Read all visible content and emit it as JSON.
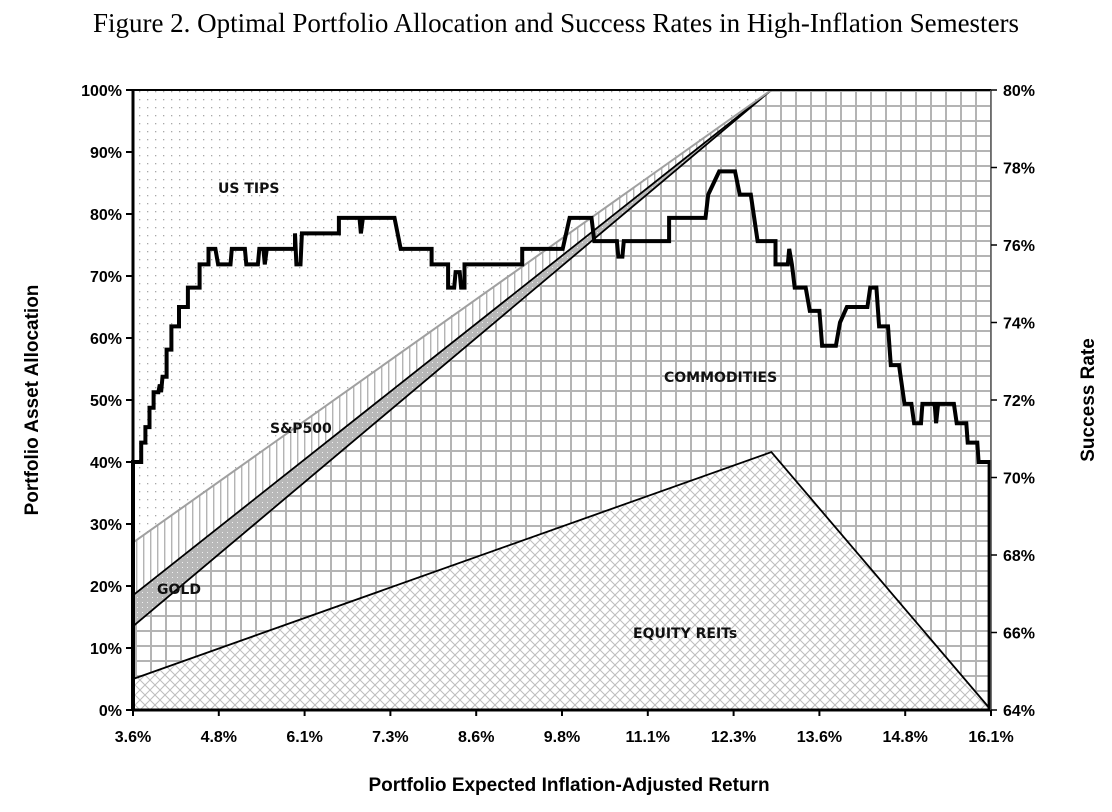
{
  "figure": {
    "title": "Figure 2. Optimal Portfolio Allocation and Success Rates in High-Inflation Semesters"
  },
  "chart_data": {
    "type": "area",
    "title": "Figure 2. Optimal Portfolio Allocation and Success Rates in High-Inflation Semesters",
    "xlabel": "Portfolio Expected Inflation-Adjusted Return",
    "ylabel": "Portfolio Asset Allocation",
    "y2label": "Success Rate",
    "xlim": [
      3.6,
      16.1
    ],
    "ylim": [
      0,
      100
    ],
    "y2lim": [
      64,
      80
    ],
    "x_ticks": [
      "3.6%",
      "4.8%",
      "6.1%",
      "7.3%",
      "8.6%",
      "9.8%",
      "11.1%",
      "12.3%",
      "13.6%",
      "14.8%",
      "16.1%"
    ],
    "y_ticks": [
      "0%",
      "10%",
      "20%",
      "30%",
      "40%",
      "50%",
      "60%",
      "70%",
      "80%",
      "90%",
      "100%"
    ],
    "y2_ticks": [
      "64%",
      "66%",
      "68%",
      "70%",
      "72%",
      "74%",
      "76%",
      "78%",
      "80%"
    ],
    "grid": false,
    "legend": "none (in-area labels)",
    "stacked_boundaries_note": "cumulative allocation (%) at top edge of each stacked asset band",
    "x": [
      3.6,
      12.9,
      16.1
    ],
    "series": [
      {
        "name": "EQUITY REITs",
        "label": "EQUITY REITs",
        "axis": "left",
        "cumulative_top": [
          5.0,
          41.6,
          0.0
        ]
      },
      {
        "name": "COMMODITIES",
        "label": "COMMODITIES",
        "axis": "left",
        "cumulative_top": [
          13.5,
          100.0,
          100.0
        ]
      },
      {
        "name": "GOLD",
        "label": "GOLD",
        "axis": "left",
        "cumulative_top": [
          18.5,
          100.0,
          100.0
        ]
      },
      {
        "name": "S&P500",
        "label": "S&P500",
        "axis": "left",
        "cumulative_top": [
          27.0,
          100.0,
          100.0
        ]
      },
      {
        "name": "US TIPS",
        "label": "US TIPS",
        "axis": "left",
        "cumulative_top": [
          100.0,
          100.0,
          100.0
        ]
      }
    ],
    "success_rate": {
      "name": "Success Rate",
      "axis": "right",
      "points": [
        [
          3.6,
          64.0
        ],
        [
          3.6,
          70.4
        ],
        [
          3.72,
          70.4
        ],
        [
          3.72,
          70.9
        ],
        [
          3.78,
          70.9
        ],
        [
          3.78,
          71.3
        ],
        [
          3.84,
          71.3
        ],
        [
          3.84,
          71.8
        ],
        [
          3.9,
          71.8
        ],
        [
          3.9,
          72.2
        ],
        [
          3.97,
          72.2
        ],
        [
          3.99,
          72.4
        ],
        [
          4.01,
          72.2
        ],
        [
          4.03,
          72.6
        ],
        [
          4.09,
          72.6
        ],
        [
          4.09,
          73.3
        ],
        [
          4.16,
          73.3
        ],
        [
          4.16,
          73.9
        ],
        [
          4.27,
          73.9
        ],
        [
          4.27,
          74.4
        ],
        [
          4.4,
          74.4
        ],
        [
          4.4,
          74.9
        ],
        [
          4.57,
          74.9
        ],
        [
          4.57,
          75.5
        ],
        [
          4.7,
          75.5
        ],
        [
          4.7,
          75.9
        ],
        [
          4.8,
          75.9
        ],
        [
          4.84,
          75.5
        ],
        [
          5.02,
          75.5
        ],
        [
          5.04,
          75.9
        ],
        [
          5.23,
          75.9
        ],
        [
          5.25,
          75.5
        ],
        [
          5.42,
          75.5
        ],
        [
          5.44,
          75.9
        ],
        [
          5.5,
          75.9
        ],
        [
          5.52,
          75.5
        ],
        [
          5.55,
          75.9
        ],
        [
          5.96,
          75.9
        ],
        [
          5.96,
          76.3
        ],
        [
          5.98,
          75.5
        ],
        [
          6.04,
          75.5
        ],
        [
          6.06,
          76.3
        ],
        [
          6.6,
          76.3
        ],
        [
          6.6,
          76.7
        ],
        [
          6.9,
          76.7
        ],
        [
          6.92,
          76.3
        ],
        [
          6.95,
          76.7
        ],
        [
          7.41,
          76.7
        ],
        [
          7.5,
          75.9
        ],
        [
          7.95,
          75.9
        ],
        [
          7.95,
          75.5
        ],
        [
          8.19,
          75.5
        ],
        [
          8.19,
          74.9
        ],
        [
          8.28,
          74.9
        ],
        [
          8.3,
          75.3
        ],
        [
          8.36,
          75.3
        ],
        [
          8.38,
          74.9
        ],
        [
          8.43,
          74.9
        ],
        [
          8.43,
          75.5
        ],
        [
          9.27,
          75.5
        ],
        [
          9.27,
          75.9
        ],
        [
          9.86,
          75.9
        ],
        [
          9.96,
          76.7
        ],
        [
          10.28,
          76.7
        ],
        [
          10.32,
          76.1
        ],
        [
          10.65,
          76.1
        ],
        [
          10.67,
          75.7
        ],
        [
          10.73,
          75.7
        ],
        [
          10.75,
          76.1
        ],
        [
          11.41,
          76.1
        ],
        [
          11.41,
          76.7
        ],
        [
          11.94,
          76.7
        ],
        [
          11.98,
          77.3
        ],
        [
          12.14,
          77.9
        ],
        [
          12.37,
          77.9
        ],
        [
          12.44,
          77.3
        ],
        [
          12.6,
          77.3
        ],
        [
          12.7,
          76.1
        ],
        [
          12.96,
          76.1
        ],
        [
          12.96,
          75.5
        ],
        [
          13.14,
          75.5
        ],
        [
          13.16,
          75.9
        ],
        [
          13.2,
          75.5
        ],
        [
          13.24,
          74.9
        ],
        [
          13.4,
          74.9
        ],
        [
          13.46,
          74.3
        ],
        [
          13.6,
          74.3
        ],
        [
          13.64,
          73.4
        ],
        [
          13.84,
          73.4
        ],
        [
          13.9,
          74.0
        ],
        [
          14.0,
          74.4
        ],
        [
          14.3,
          74.4
        ],
        [
          14.34,
          74.9
        ],
        [
          14.43,
          74.9
        ],
        [
          14.47,
          73.9
        ],
        [
          14.6,
          73.9
        ],
        [
          14.64,
          72.9
        ],
        [
          14.76,
          72.9
        ],
        [
          14.84,
          71.9
        ],
        [
          14.94,
          71.9
        ],
        [
          14.98,
          71.4
        ],
        [
          15.08,
          71.4
        ],
        [
          15.1,
          71.9
        ],
        [
          15.28,
          71.9
        ],
        [
          15.3,
          71.4
        ],
        [
          15.33,
          71.9
        ],
        [
          15.56,
          71.9
        ],
        [
          15.6,
          71.4
        ],
        [
          15.74,
          71.4
        ],
        [
          15.76,
          70.9
        ],
        [
          15.9,
          70.9
        ],
        [
          15.92,
          70.4
        ],
        [
          16.08,
          70.4
        ],
        [
          16.08,
          64.0
        ]
      ]
    }
  }
}
